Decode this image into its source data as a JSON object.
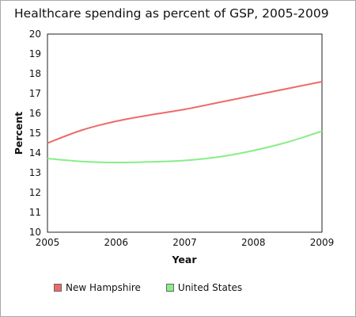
{
  "chart_data": {
    "type": "line",
    "title": "Healthcare spending as percent of GSP, 2005-2009",
    "xlabel": "Year",
    "ylabel": "Percent",
    "x": [
      2005,
      2005.5,
      2006,
      2006.5,
      2007,
      2007.5,
      2008,
      2008.5,
      2009
    ],
    "xticks": [
      2005,
      2006,
      2007,
      2008,
      2009
    ],
    "yticks": [
      10,
      11,
      12,
      13,
      14,
      15,
      16,
      17,
      18,
      19,
      20
    ],
    "xlim": [
      2005,
      2009
    ],
    "ylim": [
      10,
      20
    ],
    "grid": false,
    "legend_position": "bottom",
    "series": [
      {
        "name": "New Hampshire",
        "color": "#ee6a6a",
        "values": [
          14.5,
          15.15,
          15.6,
          15.92,
          16.2,
          16.55,
          16.9,
          17.25,
          17.6
        ]
      },
      {
        "name": "United States",
        "color": "#88ee88",
        "values": [
          13.72,
          13.57,
          13.52,
          13.55,
          13.62,
          13.8,
          14.12,
          14.55,
          15.1
        ]
      }
    ]
  }
}
